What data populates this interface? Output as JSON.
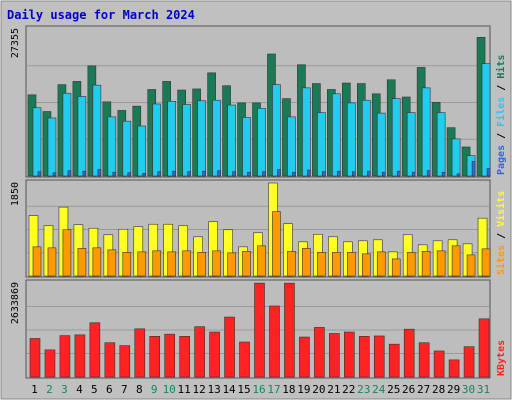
{
  "chart_data": [
    {
      "type": "bar",
      "title": "Daily usage for March 2024",
      "categories": [
        "1",
        "2",
        "3",
        "4",
        "5",
        "6",
        "7",
        "8",
        "9",
        "10",
        "11",
        "12",
        "13",
        "14",
        "15",
        "16",
        "17",
        "18",
        "19",
        "20",
        "21",
        "22",
        "23",
        "24",
        "25",
        "26",
        "27",
        "28",
        "29",
        "30",
        "31"
      ],
      "weekend_days": [
        "2",
        "3",
        "9",
        "10",
        "16",
        "17",
        "23",
        "24",
        "30",
        "31"
      ],
      "ylim": [
        0,
        27355
      ],
      "y_tick_label": "27355",
      "series": [
        {
          "name": "Hits",
          "color": "#1a7a55",
          "values": [
            15100,
            12000,
            17000,
            17600,
            20500,
            13800,
            12200,
            13000,
            16100,
            17600,
            16000,
            16200,
            19200,
            16800,
            13600,
            13600,
            22700,
            14400,
            20700,
            17200,
            16100,
            17300,
            17200,
            15300,
            17900,
            14700,
            20200,
            13700,
            9000,
            5400,
            25800
          ]
        },
        {
          "name": "Files",
          "color": "#22ccee",
          "values": [
            12700,
            10800,
            15400,
            14800,
            16900,
            11000,
            10200,
            9300,
            13400,
            13900,
            13300,
            14000,
            14100,
            13200,
            10900,
            12600,
            17000,
            11000,
            16400,
            11800,
            15300,
            13600,
            14100,
            11700,
            14400,
            11800,
            16400,
            11800,
            6900,
            3800,
            20900
          ]
        },
        {
          "name": "Pages",
          "color": "#3366dd",
          "values": [
            800,
            600,
            1000,
            900,
            1200,
            700,
            600,
            500,
            800,
            900,
            800,
            900,
            1000,
            800,
            700,
            800,
            1200,
            700,
            1100,
            800,
            900,
            800,
            900,
            700,
            900,
            700,
            1000,
            700,
            400,
            2700,
            1400
          ]
        }
      ]
    },
    {
      "type": "bar",
      "ylim": [
        0,
        1850
      ],
      "y_tick_label": "1850",
      "series": [
        {
          "name": "Visits",
          "color": "#ffff22",
          "values": [
            1200,
            1000,
            1370,
            1020,
            950,
            820,
            930,
            980,
            1030,
            1030,
            1000,
            780,
            1080,
            920,
            580,
            860,
            1850,
            1040,
            680,
            830,
            780,
            680,
            700,
            720,
            480,
            820,
            620,
            700,
            720,
            640,
            1150
          ]
        },
        {
          "name": "Sites",
          "color": "#ff9900",
          "values": [
            580,
            560,
            920,
            550,
            560,
            520,
            470,
            480,
            500,
            480,
            500,
            470,
            500,
            460,
            490,
            600,
            1280,
            490,
            550,
            470,
            470,
            470,
            440,
            480,
            340,
            470,
            490,
            500,
            600,
            420,
            540
          ]
        }
      ]
    },
    {
      "type": "bar",
      "ylim": [
        0,
        2633869
      ],
      "y_tick_label": "2633869",
      "series": [
        {
          "name": "KBytes",
          "color": "#ff2222",
          "values": [
            1080000,
            760000,
            1160000,
            1180000,
            1520000,
            960000,
            880000,
            1350000,
            1140000,
            1200000,
            1140000,
            1410000,
            1260000,
            1680000,
            980000,
            2630000,
            1990000,
            2630000,
            1120000,
            1390000,
            1220000,
            1260000,
            1140000,
            1150000,
            920000,
            1340000,
            960000,
            730000,
            480000,
            850000,
            1630000
          ]
        }
      ]
    }
  ]
}
